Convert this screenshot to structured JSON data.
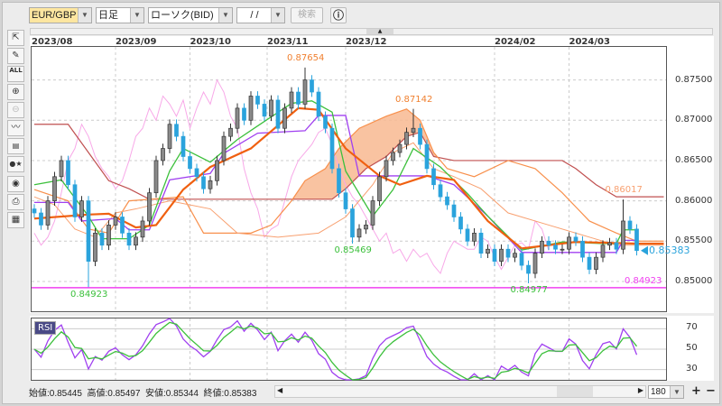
{
  "toolbar": {
    "symbol": "EUR/GBP",
    "timeframe": "日足",
    "chart_type": "ローソク(BID)",
    "date_value": "/ /",
    "search_label": "検索",
    "info_icon": "info-icon"
  },
  "tools": [
    "cursor-icon",
    "pencil-icon",
    "erase-all-icon",
    "zoom-in-icon",
    "zoom-out-icon",
    "indicator-icon",
    "data-table-icon",
    "symbols-icon",
    "eye-icon",
    "print-icon",
    "settings-icon"
  ],
  "tools_text": {
    "erase_all": "ALL"
  },
  "colors": {
    "up": "#8a8a8a",
    "down": "#2aa3dc",
    "ma": "#f06010",
    "tenkan": "#3cc03c",
    "kijun": "#a040f0",
    "senkou_a": "#f8904c",
    "senkou_b": "#c05050",
    "chikou": "#f8a8e8",
    "line2": "#f8a070",
    "cloud": "#f8b890",
    "support": "#f040f0",
    "rsi": "#a040f0",
    "rsi_signal": "#3cc03c"
  },
  "chart_data": {
    "type": "candlestick",
    "x_ticks": [
      {
        "label": "2023/08",
        "bar": -0.4
      },
      {
        "label": "2023/09",
        "bar": 12
      },
      {
        "label": "2023/10",
        "bar": 23
      },
      {
        "label": "2023/11",
        "bar": 34.4
      },
      {
        "label": "2023/12",
        "bar": 46
      },
      {
        "label": "2024/02",
        "bar": 68
      },
      {
        "label": "2024/03",
        "bar": 79
      }
    ],
    "y_ticks": [
      "0.87500",
      "0.87000",
      "0.86500",
      "0.86000",
      "0.85500",
      "0.85000"
    ],
    "ylim": [
      0.8463,
      0.8791
    ],
    "grid": true,
    "close": [
      0.8585,
      0.857,
      0.86,
      0.863,
      0.865,
      0.862,
      0.858,
      0.86,
      0.8525,
      0.856,
      0.8545,
      0.857,
      0.858,
      0.856,
      0.8545,
      0.8555,
      0.8575,
      0.861,
      0.865,
      0.8665,
      0.8695,
      0.868,
      0.8655,
      0.864,
      0.863,
      0.8615,
      0.8625,
      0.865,
      0.868,
      0.869,
      0.8715,
      0.87,
      0.873,
      0.872,
      0.8705,
      0.8725,
      0.869,
      0.8715,
      0.8735,
      0.872,
      0.875,
      0.8735,
      0.8705,
      0.869,
      0.864,
      0.861,
      0.859,
      0.8555,
      0.8565,
      0.857,
      0.86,
      0.863,
      0.865,
      0.866,
      0.867,
      0.8685,
      0.869,
      0.867,
      0.864,
      0.862,
      0.8605,
      0.8595,
      0.858,
      0.8565,
      0.855,
      0.856,
      0.8535,
      0.854,
      0.8525,
      0.854,
      0.853,
      0.8535,
      0.852,
      0.851,
      0.8535,
      0.855,
      0.8545,
      0.854,
      0.854,
      0.8555,
      0.855,
      0.853,
      0.8515,
      0.853,
      0.8545,
      0.8548,
      0.854,
      0.8575,
      0.8565,
      0.85383
    ],
    "annotations": [
      {
        "bar": 40,
        "value": 0.87654,
        "text": "0.87654",
        "kind": "high",
        "color": "#f08030"
      },
      {
        "bar": 56,
        "value": 0.87142,
        "text": "0.87142",
        "kind": "high",
        "color": "#f08030"
      },
      {
        "bar": 87,
        "value": 0.86017,
        "text": "0.86017",
        "kind": "high",
        "color": "#f8a070"
      },
      {
        "bar": 47,
        "value": 0.85469,
        "text": "0.85469",
        "kind": "low",
        "color": "#3cc03c"
      },
      {
        "bar": 8,
        "value": 0.84923,
        "text": "0.84923",
        "kind": "low",
        "color": "#3cc03c"
      },
      {
        "bar": 73,
        "value": 0.84977,
        "text": "0.84977",
        "kind": "low",
        "color": "#3cc03c"
      }
    ],
    "support_line": {
      "value": 0.84923,
      "text": "0.84923"
    },
    "current_price": {
      "value": 0.85383,
      "text": "0.85383"
    },
    "ma": [
      [
        0,
        0.8578
      ],
      [
        8,
        0.8583
      ],
      [
        11,
        0.8584
      ],
      [
        15,
        0.8567
      ],
      [
        18,
        0.857
      ],
      [
        22,
        0.8614
      ],
      [
        26,
        0.8642
      ],
      [
        32,
        0.8665
      ],
      [
        39,
        0.8715
      ],
      [
        42,
        0.8713
      ],
      [
        46,
        0.8665
      ],
      [
        51,
        0.8631
      ],
      [
        54,
        0.862
      ],
      [
        58,
        0.8631
      ],
      [
        62,
        0.8626
      ],
      [
        67,
        0.8575
      ],
      [
        72,
        0.8541
      ],
      [
        80,
        0.8549
      ],
      [
        89,
        0.8547
      ],
      [
        93,
        0.8547
      ]
    ],
    "tenkan": [
      [
        0,
        0.862
      ],
      [
        4,
        0.8626
      ],
      [
        8,
        0.8581
      ],
      [
        10,
        0.8553
      ],
      [
        14,
        0.8553
      ],
      [
        17,
        0.857
      ],
      [
        20,
        0.8637
      ],
      [
        22,
        0.8665
      ],
      [
        26,
        0.8648
      ],
      [
        30,
        0.8676
      ],
      [
        33,
        0.8693
      ],
      [
        38,
        0.8721
      ],
      [
        41,
        0.8724
      ],
      [
        44,
        0.871
      ],
      [
        46,
        0.8637
      ],
      [
        50,
        0.8581
      ],
      [
        53,
        0.8614
      ],
      [
        56,
        0.8665
      ],
      [
        60,
        0.8642
      ],
      [
        64,
        0.8609
      ],
      [
        67,
        0.8581
      ],
      [
        72,
        0.8539
      ],
      [
        78,
        0.8549
      ],
      [
        84,
        0.8547
      ],
      [
        86,
        0.8547
      ],
      [
        87,
        0.8564
      ],
      [
        89,
        0.8564
      ]
    ],
    "kijun": [
      [
        0,
        0.8598
      ],
      [
        5,
        0.8598
      ],
      [
        7,
        0.8575
      ],
      [
        12,
        0.8578
      ],
      [
        14,
        0.8564
      ],
      [
        17,
        0.8564
      ],
      [
        20,
        0.8626
      ],
      [
        26,
        0.8634
      ],
      [
        28,
        0.8659
      ],
      [
        33,
        0.8684
      ],
      [
        40,
        0.8687
      ],
      [
        42,
        0.8706
      ],
      [
        46,
        0.8706
      ],
      [
        48,
        0.8631
      ],
      [
        58,
        0.8631
      ],
      [
        62,
        0.862
      ],
      [
        67,
        0.8581
      ],
      [
        72,
        0.8536
      ],
      [
        86,
        0.8536
      ],
      [
        87,
        0.8551
      ],
      [
        89,
        0.8551
      ]
    ],
    "senkou_a": [
      [
        0,
        0.8614
      ],
      [
        5,
        0.86
      ],
      [
        8,
        0.8565
      ],
      [
        11,
        0.856
      ],
      [
        14,
        0.86
      ],
      [
        22,
        0.8605
      ],
      [
        25,
        0.856
      ],
      [
        32,
        0.856
      ],
      [
        35,
        0.857
      ],
      [
        38,
        0.86
      ],
      [
        40,
        0.8625
      ],
      [
        43,
        0.864
      ],
      [
        45,
        0.8665
      ],
      [
        48,
        0.869
      ],
      [
        52,
        0.8705
      ],
      [
        55,
        0.8714
      ],
      [
        57,
        0.87
      ],
      [
        59,
        0.866
      ],
      [
        61,
        0.864
      ],
      [
        65,
        0.863
      ],
      [
        70,
        0.865
      ],
      [
        74,
        0.864
      ],
      [
        78,
        0.861
      ],
      [
        82,
        0.8575
      ],
      [
        86,
        0.856
      ],
      [
        89,
        0.855
      ],
      [
        93,
        0.855
      ]
    ],
    "senkou_b": [
      [
        0,
        0.8695
      ],
      [
        5,
        0.8695
      ],
      [
        8,
        0.866
      ],
      [
        11,
        0.8625
      ],
      [
        14,
        0.8615
      ],
      [
        17,
        0.8602
      ],
      [
        44,
        0.8602
      ],
      [
        46,
        0.8615
      ],
      [
        49,
        0.864
      ],
      [
        52,
        0.8655
      ],
      [
        55,
        0.868
      ],
      [
        57,
        0.8685
      ],
      [
        59,
        0.8655
      ],
      [
        62,
        0.865
      ],
      [
        78,
        0.865
      ],
      [
        80,
        0.864
      ],
      [
        83,
        0.862
      ],
      [
        86,
        0.8605
      ],
      [
        93,
        0.8605
      ]
    ],
    "line2": [
      [
        0,
        0.8605
      ],
      [
        3,
        0.8595
      ],
      [
        6,
        0.8565
      ],
      [
        9,
        0.8555
      ],
      [
        12,
        0.8585
      ],
      [
        15,
        0.859
      ],
      [
        20,
        0.86
      ],
      [
        26,
        0.859
      ],
      [
        30,
        0.856
      ],
      [
        36,
        0.8555
      ],
      [
        42,
        0.856
      ],
      [
        46,
        0.858
      ],
      [
        50,
        0.862
      ],
      [
        53,
        0.866
      ],
      [
        56,
        0.8672
      ],
      [
        59,
        0.864
      ],
      [
        62,
        0.863
      ],
      [
        66,
        0.8615
      ],
      [
        70,
        0.8585
      ],
      [
        76,
        0.857
      ],
      [
        82,
        0.8555
      ],
      [
        86,
        0.8545
      ],
      [
        93,
        0.8545
      ]
    ],
    "rsi": {
      "label": "RSI",
      "y_ticks": [
        "70",
        "50",
        "30"
      ],
      "ylim": [
        20,
        80
      ]
    }
  },
  "status": {
    "open": "始値:0.85445",
    "high": "高値:0.85497",
    "low": "安値:0.85344",
    "close": "終値:0.85383"
  },
  "zoom": {
    "bars": "180",
    "plus": "+",
    "minus": "−"
  }
}
